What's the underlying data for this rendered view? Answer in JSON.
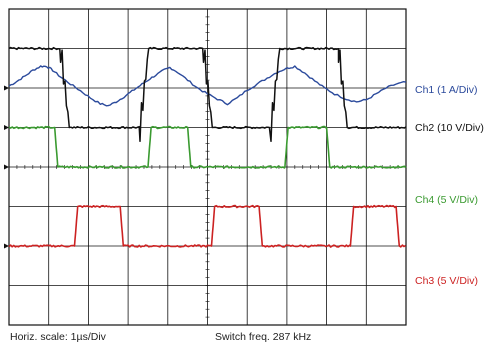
{
  "chart_data": {
    "type": "line",
    "xlabel": "Horiz. scale: 1µs/Div",
    "annotation": "Switch freq. 287 kHz",
    "x_divisions": 10,
    "y_divisions": 8,
    "grid": true,
    "switch_freq_khz": 287,
    "time_per_div_us": 1,
    "series": [
      {
        "name": "Ch1 (1 A/Div)",
        "color": "#2b4a9c",
        "baseline_div": 2.0,
        "points": [
          [
            0,
            2.05
          ],
          [
            0.2,
            2.17
          ],
          [
            0.4,
            2.3
          ],
          [
            0.6,
            2.45
          ],
          [
            0.8,
            2.55
          ],
          [
            0.95,
            2.55
          ],
          [
            1.1,
            2.45
          ],
          [
            1.3,
            2.28
          ],
          [
            1.55,
            2.1
          ],
          [
            1.8,
            1.93
          ],
          [
            2.05,
            1.75
          ],
          [
            2.3,
            1.6
          ],
          [
            2.5,
            1.55
          ],
          [
            2.7,
            1.65
          ],
          [
            2.9,
            1.78
          ],
          [
            3.1,
            1.92
          ],
          [
            3.3,
            2.06
          ],
          [
            3.5,
            2.2
          ],
          [
            3.7,
            2.33
          ],
          [
            3.9,
            2.45
          ],
          [
            4.05,
            2.52
          ],
          [
            4.25,
            2.4
          ],
          [
            4.5,
            2.2
          ],
          [
            4.75,
            2.0
          ],
          [
            5.0,
            1.85
          ],
          [
            5.25,
            1.72
          ],
          [
            5.5,
            1.6
          ],
          [
            5.75,
            1.75
          ],
          [
            6.0,
            1.95
          ],
          [
            6.25,
            2.1
          ],
          [
            6.5,
            2.25
          ],
          [
            6.75,
            2.4
          ],
          [
            7.0,
            2.5
          ],
          [
            7.2,
            2.55
          ],
          [
            7.45,
            2.38
          ],
          [
            7.7,
            2.18
          ],
          [
            7.95,
            2.0
          ],
          [
            8.2,
            1.85
          ],
          [
            8.5,
            1.72
          ],
          [
            8.75,
            1.65
          ],
          [
            9.0,
            1.7
          ],
          [
            9.25,
            1.85
          ],
          [
            9.5,
            2.0
          ],
          [
            9.75,
            2.1
          ],
          [
            10,
            2.15
          ]
        ]
      },
      {
        "name": "Ch2 (10 V/Div)",
        "color": "#111111",
        "baseline_div": 1.0,
        "high_div": 3.0,
        "edges": [
          [
            0,
            "high"
          ],
          [
            1.3,
            "fall"
          ],
          [
            3.3,
            "rise"
          ],
          [
            4.9,
            "fall"
          ],
          [
            6.6,
            "rise"
          ],
          [
            8.3,
            "fall"
          ]
        ]
      },
      {
        "name": "Ch4 (5 V/Div)",
        "color": "#3a9a30",
        "baseline_div": 0.0,
        "high_div": 1.0,
        "edges": [
          [
            0,
            "high"
          ],
          [
            1.15,
            "fall"
          ],
          [
            3.5,
            "rise"
          ],
          [
            4.5,
            "fall"
          ],
          [
            6.95,
            "rise"
          ],
          [
            8.0,
            "fall"
          ]
        ]
      },
      {
        "name": "Ch3 (5 V/Div)",
        "color": "#cc2222",
        "baseline_div": -2.0,
        "high_div": -1.0,
        "edges": [
          [
            0,
            "low"
          ],
          [
            1.65,
            "rise"
          ],
          [
            2.8,
            "fall"
          ],
          [
            5.1,
            "rise"
          ],
          [
            6.3,
            "fall"
          ],
          [
            8.6,
            "rise"
          ],
          [
            9.75,
            "fall"
          ]
        ]
      }
    ]
  },
  "footer": {
    "left": "Horiz. scale: 1µs/Div",
    "right": "Switch freq. 287 kHz"
  }
}
